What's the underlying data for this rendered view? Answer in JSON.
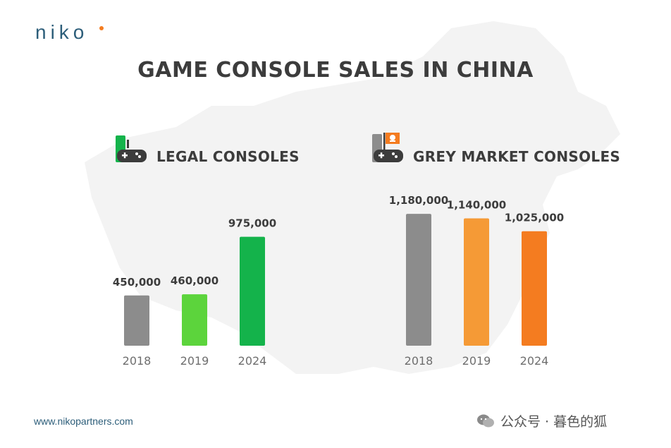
{
  "brand": {
    "logo_text": "NIKO",
    "accent_color": "#f47c20",
    "brand_color": "#2d5e7a"
  },
  "title": "GAME CONSOLE SALES IN CHINA",
  "footer": {
    "url": "www.nikopartners.com",
    "watermark": "公众号 · 暮色的狐"
  },
  "sections": {
    "legal": {
      "title": "LEGAL CONSOLES",
      "icon": "game-controller-icon"
    },
    "grey": {
      "title": "GREY MARKET CONSOLES",
      "icon": "pirate-flag-controller-icon"
    }
  },
  "chart_data": [
    {
      "type": "bar",
      "title": "LEGAL CONSOLES",
      "categories": [
        "2018",
        "2019",
        "2024"
      ],
      "values": [
        450000,
        460000,
        975000
      ],
      "value_labels": [
        "450,000",
        "460,000",
        "975,000"
      ],
      "colors": [
        "#8c8c8c",
        "#5cd43c",
        "#14b34b"
      ],
      "ylim": [
        0,
        1200000
      ],
      "grid": false
    },
    {
      "type": "bar",
      "title": "GREY MARKET CONSOLES",
      "categories": [
        "2018",
        "2019",
        "2024"
      ],
      "values": [
        1180000,
        1140000,
        1025000
      ],
      "value_labels": [
        "1,180,000",
        "1,140,000",
        "1,025,000"
      ],
      "colors": [
        "#8c8c8c",
        "#f59a36",
        "#f47c20"
      ],
      "ylim": [
        0,
        1200000
      ],
      "grid": false
    }
  ]
}
